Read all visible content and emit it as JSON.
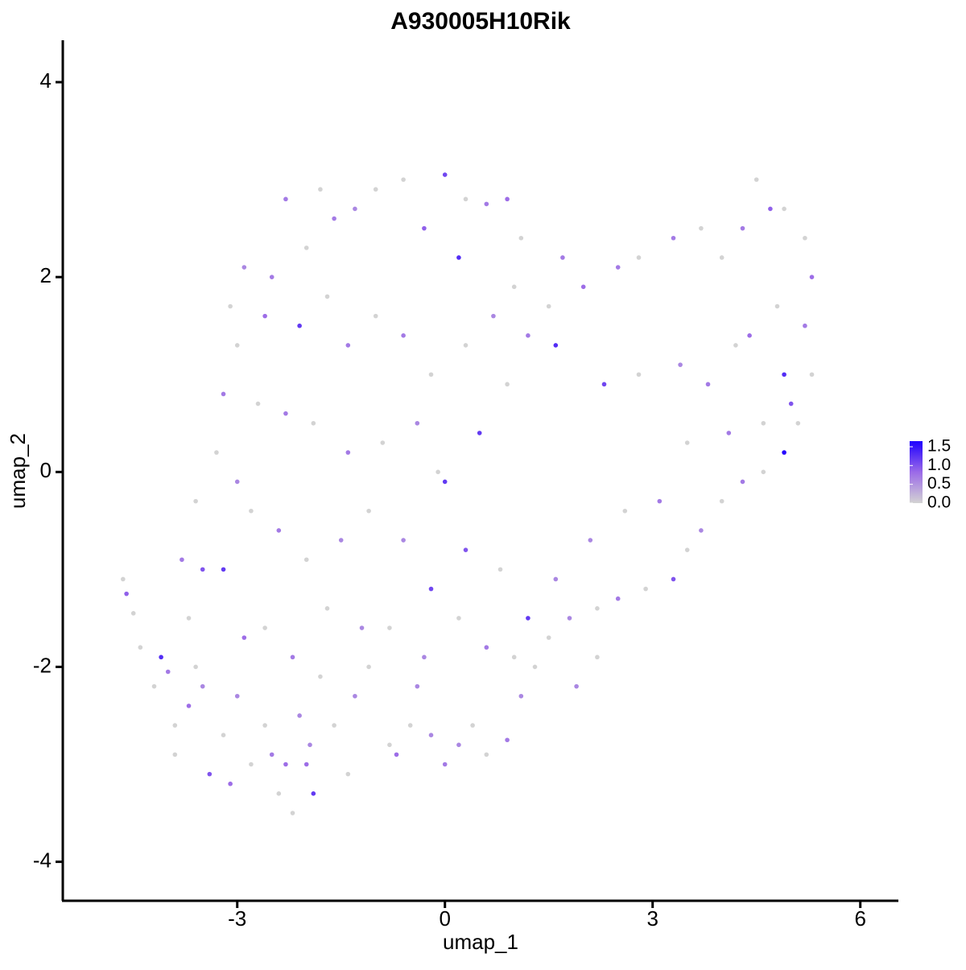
{
  "chart_data": {
    "type": "scatter",
    "title": "A930005H10Rik",
    "x_label": "umap_1",
    "y_label": "umap_2",
    "xlim": [
      -5.52,
      6.55
    ],
    "ylim": [
      -4.4,
      4.43
    ],
    "xticks": [
      -3,
      0,
      3,
      6
    ],
    "yticks": [
      -4,
      -2,
      0,
      2,
      4
    ],
    "color_scale": [
      "#D3D3D3",
      "#9B6AE8",
      "#1E00FF"
    ],
    "color_lim": [
      0,
      1.65
    ],
    "color_ticks": [
      {
        "value": 0,
        "label": "0.0"
      },
      {
        "value": 0.5,
        "label": "0.5"
      },
      {
        "value": 1,
        "label": "1.0"
      },
      {
        "value": 1.5,
        "label": "1.5"
      }
    ],
    "x": [
      -4.6,
      -4.65,
      -4.5,
      -4.4,
      -4.1,
      -4.0,
      -3.9,
      -3.7,
      -3.6,
      -3.5,
      -3.4,
      -3.2,
      -3.1,
      -3.0,
      -2.9,
      -2.8,
      -2.6,
      -2.5,
      -2.4,
      -2.3,
      -2.2,
      -2.1,
      -1.9,
      -1.95,
      -1.8,
      -1.6,
      -1.4,
      -1.3,
      -1.1,
      -0.8,
      -0.7,
      -0.5,
      -0.4,
      -0.2,
      0.0,
      0.2,
      0.4,
      0.6,
      0.9,
      1.1,
      1.3,
      1.5,
      1.8,
      2.2,
      2.5,
      2.9,
      3.3,
      3.5,
      3.7,
      4.0,
      4.3,
      4.6,
      4.9,
      5.1,
      5.3,
      5.2,
      5.3,
      5.2,
      4.9,
      4.7,
      4.5,
      4.3,
      4.0,
      3.7,
      3.3,
      2.8,
      2.5,
      2.0,
      1.7,
      1.5,
      1.2,
      1.6,
      2.3,
      2.8,
      3.4,
      3.8,
      4.2,
      4.4,
      4.6,
      4.1,
      3.5,
      3.1,
      2.6,
      2.1,
      1.6,
      1.2,
      0.8,
      0.3,
      -0.2,
      -0.6,
      -1.1,
      -1.5,
      -2.0,
      -2.4,
      -2.8,
      -3.0,
      -3.3,
      -3.6,
      -3.8,
      -3.2,
      -2.6,
      -2.2,
      -1.7,
      -1.2,
      -0.8,
      -0.3,
      0.2,
      0.6,
      1.0,
      -0.1,
      0.0,
      0.5,
      0.9,
      -0.4,
      -0.9,
      -1.4,
      -1.9,
      -2.3,
      -2.7,
      -3.2,
      -3.0,
      -2.6,
      -2.1,
      -1.7,
      -1.4,
      -1.0,
      -0.6,
      -0.2,
      0.3,
      0.7,
      1.0,
      -2.5,
      -2.0,
      -1.6,
      -1.0,
      -0.6,
      0.0,
      0.3,
      0.6,
      0.9,
      1.1,
      -2.3,
      -1.8,
      -1.3,
      -0.3,
      0.2,
      -2.9,
      -3.1,
      4.9,
      5.0,
      4.8,
      2.2,
      1.9,
      -3.7,
      -4.2,
      -3.9,
      -2.0,
      -3.5
    ],
    "y": [
      -1.25,
      -1.1,
      -1.45,
      -1.8,
      -1.9,
      -2.05,
      -2.6,
      -2.4,
      -2.0,
      -2.2,
      -3.1,
      -2.7,
      -3.2,
      -2.3,
      -1.7,
      -3.0,
      -2.6,
      -2.9,
      -3.3,
      -3.0,
      -3.5,
      -2.5,
      -3.3,
      -2.8,
      -2.1,
      -2.6,
      -3.1,
      -2.3,
      -2.0,
      -2.8,
      -2.9,
      -2.6,
      -2.2,
      -2.7,
      -3.0,
      -2.8,
      -2.6,
      -2.9,
      -2.75,
      -2.3,
      -2.0,
      -1.7,
      -1.5,
      -1.4,
      -1.3,
      -1.2,
      -1.1,
      -0.8,
      -0.6,
      -0.3,
      -0.1,
      0.0,
      0.2,
      0.5,
      1.0,
      1.5,
      2.0,
      2.4,
      2.7,
      2.7,
      3.0,
      2.5,
      2.2,
      2.5,
      2.4,
      2.2,
      2.1,
      1.9,
      2.2,
      1.7,
      1.4,
      1.3,
      0.9,
      1.0,
      1.1,
      0.9,
      1.3,
      1.4,
      0.5,
      0.4,
      0.3,
      -0.3,
      -0.4,
      -0.7,
      -1.1,
      -1.5,
      -1.0,
      -0.8,
      -1.2,
      -0.7,
      -0.4,
      -0.7,
      -0.9,
      -0.6,
      -0.4,
      -0.1,
      0.2,
      -0.3,
      -0.9,
      -1.0,
      -1.6,
      -1.9,
      -1.4,
      -1.6,
      -1.6,
      -1.9,
      -1.5,
      -1.8,
      -1.9,
      0.0,
      -0.1,
      0.4,
      0.9,
      0.5,
      0.3,
      0.2,
      0.5,
      0.6,
      0.7,
      0.8,
      1.3,
      1.6,
      1.5,
      1.8,
      1.3,
      1.6,
      1.4,
      1.0,
      1.3,
      1.6,
      1.9,
      2.0,
      2.3,
      2.6,
      2.9,
      3.0,
      3.05,
      2.8,
      2.75,
      2.8,
      2.4,
      2.8,
      2.9,
      2.7,
      2.5,
      2.2,
      2.1,
      1.7,
      1.0,
      0.7,
      1.7,
      -1.9,
      -2.2,
      -1.5,
      -2.2,
      -2.9,
      -3.0,
      -1.0
    ],
    "values": [
      0.9,
      0,
      0,
      0,
      1.3,
      0.7,
      0,
      0.8,
      0,
      0.6,
      1.0,
      0,
      0.8,
      0.6,
      0.8,
      0,
      0,
      0.7,
      0,
      0.8,
      0,
      0.6,
      1.2,
      0.6,
      0,
      0,
      0,
      0.6,
      0,
      0,
      0.8,
      0,
      0.6,
      0.6,
      0.7,
      0.6,
      0,
      0,
      0.7,
      0.6,
      0,
      0,
      0.6,
      0,
      0.7,
      0,
      1.0,
      0,
      0.6,
      0,
      0.7,
      0,
      1.6,
      0,
      0,
      0.7,
      0.8,
      0,
      0,
      0.9,
      0,
      0.7,
      0,
      0,
      0.7,
      0,
      0.7,
      0.8,
      0.7,
      0,
      0.7,
      1.3,
      1.1,
      0,
      0.6,
      0.7,
      0,
      0.8,
      0,
      0.7,
      0,
      0.7,
      0,
      0.6,
      0.6,
      1.2,
      0,
      1.0,
      1.1,
      0.6,
      0,
      0.6,
      0,
      0.7,
      0,
      0.6,
      0,
      0,
      0.7,
      1.2,
      0,
      0.7,
      0,
      0.6,
      0,
      0.6,
      0,
      0.7,
      0,
      0,
      1.2,
      1.2,
      0,
      0.6,
      0,
      0.7,
      0,
      0.7,
      0,
      0.7,
      0,
      0.8,
      1.2,
      0,
      0.7,
      0,
      0.7,
      0,
      0,
      0.6,
      0,
      0.7,
      0,
      0.7,
      0,
      0,
      1.1,
      0,
      0.7,
      0.8,
      0,
      0.7,
      0,
      0.6,
      0.9,
      1.3,
      0.6,
      0,
      1.3,
      1.0,
      0,
      0,
      0.6,
      0,
      0,
      0,
      0.8,
      1.0
    ]
  }
}
